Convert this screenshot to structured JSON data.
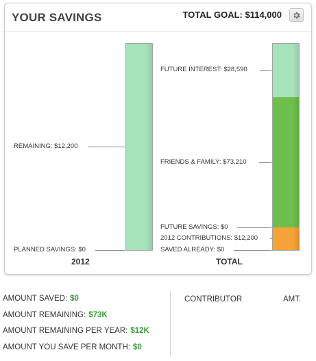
{
  "header": {
    "title": "YOUR SAVINGS",
    "total_goal_label": "TOTAL GOAL:",
    "total_goal_value": "$114,000",
    "settings_icon": "gear-icon"
  },
  "chart_data": {
    "type": "bar",
    "stacked": true,
    "categories": [
      "2012",
      "TOTAL"
    ],
    "series": [
      {
        "name": "PLANNED SAVINGS",
        "category": "2012",
        "value": 0
      },
      {
        "name": "REMAINING",
        "category": "2012",
        "value": 12200,
        "color": "#a6e3bb"
      },
      {
        "name": "SAVED ALREADY",
        "category": "TOTAL",
        "value": 0
      },
      {
        "name": "2012 CONTRIBUTIONS",
        "category": "TOTAL",
        "value": 12200,
        "color": "#f5a236"
      },
      {
        "name": "FUTURE SAVINGS",
        "category": "TOTAL",
        "value": 0
      },
      {
        "name": "FRIENDS & FAMILY",
        "category": "TOTAL",
        "value": 73210,
        "color": "#6cbf4c"
      },
      {
        "name": "FUTURE INTEREST",
        "category": "TOTAL",
        "value": 28590,
        "color": "#a6e3bb"
      }
    ],
    "labels": {
      "remaining": "REMAINING: $12,200",
      "planned_savings": "PLANNED SAVINGS: $0",
      "future_interest": "FUTURE INTEREST: $28,590",
      "friends_family": "FRIENDS & FAMILY: $73,210",
      "future_savings": "FUTURE SAVINGS: $0",
      "contributions_2012": "2012 CONTRIBUTIONS: $12,200",
      "saved_already": "SAVED ALREADY: $0"
    }
  },
  "stats": [
    {
      "label": "AMOUNT SAVED:",
      "value": "$0"
    },
    {
      "label": "AMOUNT REMAINING:",
      "value": "$73K"
    },
    {
      "label": "AMOUNT REMAINING PER YEAR:",
      "value": "$12K"
    },
    {
      "label": "AMOUNT YOU SAVE PER MONTH:",
      "value": "$0"
    }
  ],
  "contributors": {
    "col_contributor": "CONTRIBUTOR",
    "col_amount": "AMT."
  },
  "colors": {
    "light_green": "#a6e3bb",
    "green": "#6cbf4c",
    "orange": "#f5a236",
    "value_green": "#3a9c3a"
  }
}
